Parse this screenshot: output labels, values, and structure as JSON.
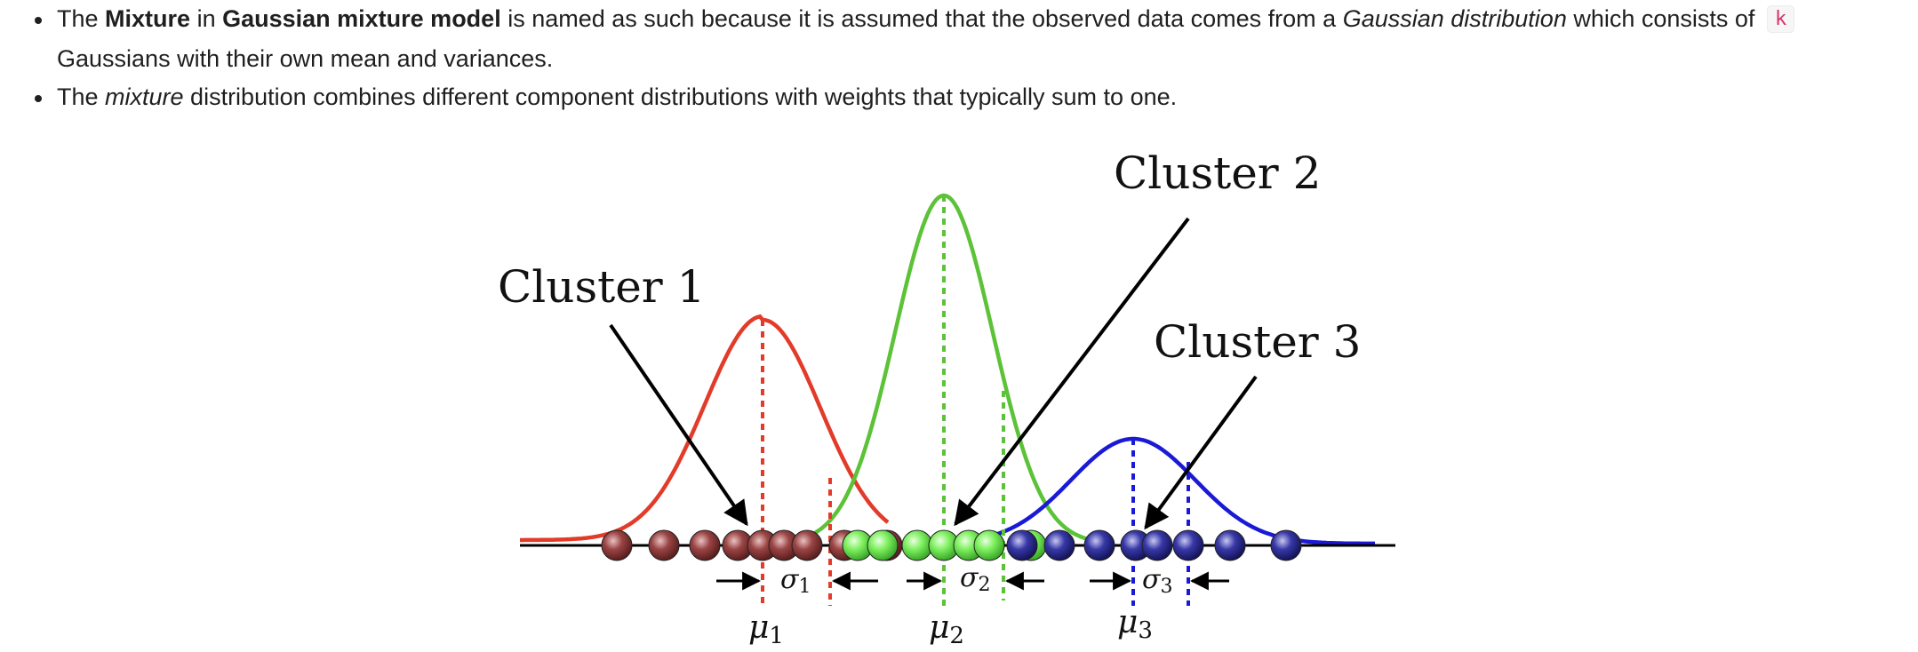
{
  "bullets": [
    {
      "parts": [
        {
          "text": "The ",
          "style": "normal"
        },
        {
          "text": "Mixture",
          "style": "bold"
        },
        {
          "text": " in ",
          "style": "normal"
        },
        {
          "text": "Gaussian mixture model",
          "style": "bold"
        },
        {
          "text": " is named as such because it is assumed that the observed data comes from a ",
          "style": "normal"
        },
        {
          "text": "Gaussian distribution",
          "style": "italic"
        },
        {
          "text": " which consists of ",
          "style": "normal"
        },
        {
          "text": "k",
          "style": "code"
        },
        {
          "text": " Gaussians with their own mean and variances.",
          "style": "normal"
        }
      ]
    },
    {
      "parts": [
        {
          "text": "The ",
          "style": "normal"
        },
        {
          "text": "mixture",
          "style": "italic"
        },
        {
          "text": " distribution combines different component distributions with weights that typically sum to one.",
          "style": "normal"
        }
      ]
    }
  ],
  "figure": {
    "labels": {
      "cluster1": "Cluster 1",
      "cluster2": "Cluster 2",
      "cluster3": "Cluster 3"
    },
    "clusters": [
      {
        "id": "cluster1",
        "mean_symbol": "μ",
        "mean_sub": "1",
        "sigma_symbol": "σ",
        "sigma_sub": "1",
        "color": "#e23b2a",
        "point_color": "#8b3a3a"
      },
      {
        "id": "cluster2",
        "mean_symbol": "μ",
        "mean_sub": "2",
        "sigma_symbol": "σ",
        "sigma_sub": "2",
        "color": "#5cc238",
        "point_color": "#6fe35a"
      },
      {
        "id": "cluster3",
        "mean_symbol": "μ",
        "mean_sub": "3",
        "sigma_symbol": "σ",
        "sigma_sub": "3",
        "color": "#1a1ad6",
        "point_color": "#2a2a9a"
      }
    ],
    "axis_color": "#000000"
  }
}
